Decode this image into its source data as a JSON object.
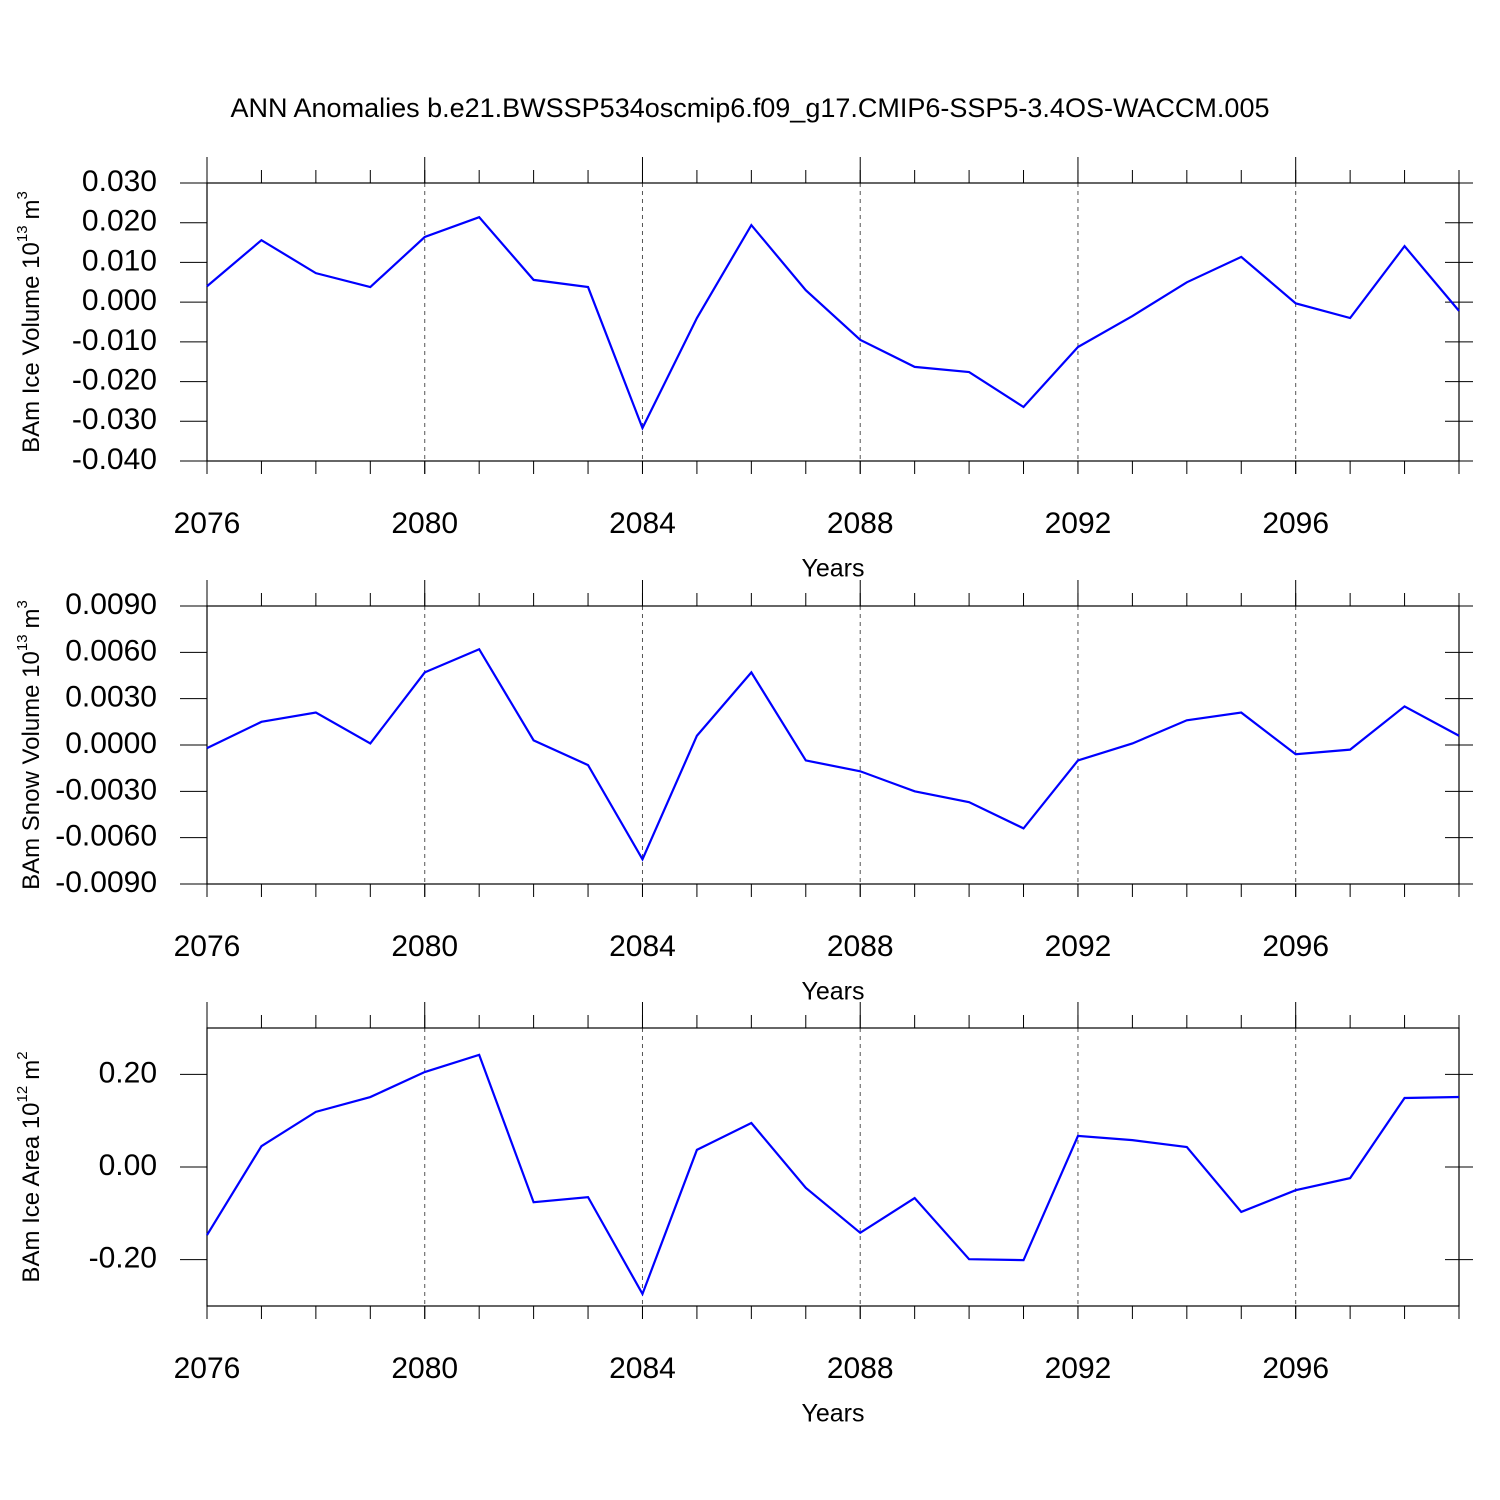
{
  "title": "ANN Anomalies b.e21.BWSSP534oscmip6.f09_g17.CMIP6-SSP5-3.4OS-WACCM.005",
  "chart_data": [
    {
      "type": "line",
      "ylabel": [
        "BAm Ice Volume 10",
        "13",
        "m",
        "3"
      ],
      "xlabel": "Years",
      "x": [
        2076,
        2077,
        2078,
        2079,
        2080,
        2081,
        2082,
        2083,
        2084,
        2085,
        2086,
        2087,
        2088,
        2089,
        2090,
        2091,
        2092,
        2093,
        2094,
        2095,
        2096,
        2097,
        2098,
        2099
      ],
      "series": [
        {
          "color": "#0000ff",
          "values": [
            0.004,
            0.0156,
            0.0073,
            0.0038,
            0.0164,
            0.0214,
            0.0056,
            0.0038,
            -0.0317,
            -0.004,
            0.0194,
            0.003,
            -0.0095,
            -0.0163,
            -0.0176,
            -0.0264,
            -0.0113,
            -0.0035,
            0.005,
            0.0114,
            -0.0003,
            -0.004,
            0.0141,
            -0.0022
          ]
        }
      ],
      "xlim": [
        2076,
        2099
      ],
      "xticks": [
        2076,
        2080,
        2084,
        2088,
        2092,
        2096
      ],
      "ylim": [
        -0.04,
        0.03
      ],
      "yticks": [
        {
          "value": -0.04,
          "label": "-0.040"
        },
        {
          "value": -0.03,
          "label": "-0.030"
        },
        {
          "value": -0.02,
          "label": "-0.020"
        },
        {
          "value": -0.01,
          "label": "-0.010"
        },
        {
          "value": 0,
          "label": "0.000"
        },
        {
          "value": 0.01,
          "label": "0.010"
        },
        {
          "value": 0.02,
          "label": "0.020"
        },
        {
          "value": 0.03,
          "label": "0.030"
        }
      ],
      "grid": "x-dashed"
    },
    {
      "type": "line",
      "ylabel": [
        "BAm Snow Volume 10",
        "13",
        "m",
        "3"
      ],
      "xlabel": "Years",
      "x": [
        2076,
        2077,
        2078,
        2079,
        2080,
        2081,
        2082,
        2083,
        2084,
        2085,
        2086,
        2087,
        2088,
        2089,
        2090,
        2091,
        2092,
        2093,
        2094,
        2095,
        2096,
        2097,
        2098,
        2099
      ],
      "series": [
        {
          "color": "#0000ff",
          "values": [
            -0.0002,
            0.0015,
            0.0021,
            0.0001,
            0.0047,
            0.0062,
            0.0003,
            -0.0013,
            -0.0074,
            0.0006,
            0.0047,
            -0.001,
            -0.0017,
            -0.003,
            -0.0037,
            -0.0054,
            -0.001,
            0.0001,
            0.0016,
            0.0021,
            -0.0006,
            -0.0003,
            0.0025,
            0.0006
          ]
        }
      ],
      "xlim": [
        2076,
        2099
      ],
      "xticks": [
        2076,
        2080,
        2084,
        2088,
        2092,
        2096
      ],
      "ylim": [
        -0.009,
        0.009
      ],
      "yticks": [
        {
          "value": -0.009,
          "label": "-0.0090"
        },
        {
          "value": -0.006,
          "label": "-0.0060"
        },
        {
          "value": -0.003,
          "label": "-0.0030"
        },
        {
          "value": 0,
          "label": "0.0000"
        },
        {
          "value": 0.003,
          "label": "0.0030"
        },
        {
          "value": 0.006,
          "label": "0.0060"
        },
        {
          "value": 0.009,
          "label": "0.0090"
        }
      ],
      "grid": "x-dashed"
    },
    {
      "type": "line",
      "ylabel": [
        "BAm Ice Area 10",
        "12",
        "m",
        "2"
      ],
      "xlabel": "Years",
      "x": [
        2076,
        2077,
        2078,
        2079,
        2080,
        2081,
        2082,
        2083,
        2084,
        2085,
        2086,
        2087,
        2088,
        2089,
        2090,
        2091,
        2092,
        2093,
        2094,
        2095,
        2096,
        2097,
        2098,
        2099
      ],
      "series": [
        {
          "color": "#0000ff",
          "values": [
            -0.147,
            0.045,
            0.119,
            0.151,
            0.205,
            0.242,
            -0.076,
            -0.065,
            -0.274,
            0.037,
            0.095,
            -0.045,
            -0.142,
            -0.067,
            -0.199,
            -0.201,
            0.067,
            0.058,
            0.043,
            -0.097,
            -0.05,
            -0.024,
            0.149,
            0.151
          ]
        }
      ],
      "xlim": [
        2076,
        2099
      ],
      "xticks": [
        2076,
        2080,
        2084,
        2088,
        2092,
        2096
      ],
      "ylim": [
        -0.3,
        0.3
      ],
      "yticks": [
        {
          "value": -0.2,
          "label": "-0.20"
        },
        {
          "value": 0,
          "label": "0.00"
        },
        {
          "value": 0.2,
          "label": "0.20"
        }
      ],
      "grid": "x-dashed"
    }
  ]
}
